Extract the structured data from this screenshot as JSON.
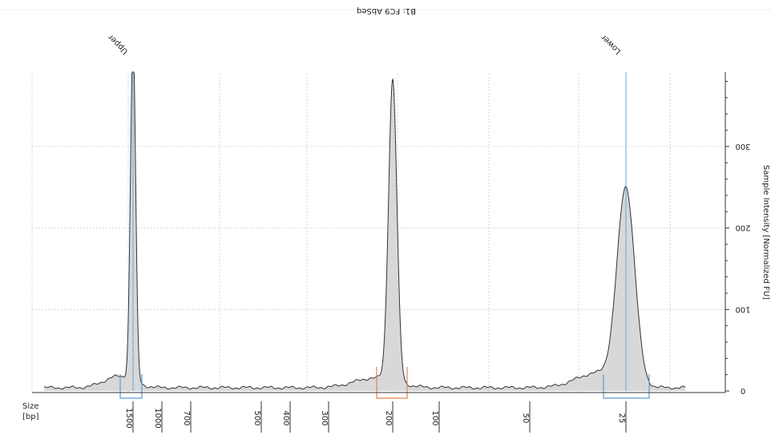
{
  "chart_data": {
    "type": "line",
    "title": "B1: FC9 AbSeq",
    "ylabel": "Sample Intensity [Normalized FU]",
    "xlabel_lines": [
      "Size",
      "[bp]"
    ],
    "y_ticks": [
      0,
      100,
      200,
      300
    ],
    "ylim": [
      0,
      390
    ],
    "x_ticks": [
      "1500",
      "1000",
      "700",
      "500",
      "400",
      "300",
      "200",
      "100",
      "50",
      "25"
    ],
    "grid": true,
    "mirrored": true,
    "peaks": [
      {
        "label": "Upper",
        "size_bp": 1500,
        "intensity": 420
      },
      {
        "size_bp": 200,
        "intensity": 370
      },
      {
        "label": "Lower",
        "size_bp": 25,
        "intensity": 240
      }
    ],
    "regions": [
      {
        "size_bp": 1500,
        "color": "#5b9bd5"
      },
      {
        "size_bp": 200,
        "color": "#e8834b"
      },
      {
        "size_bp": 25,
        "color": "#5b9bd5"
      }
    ],
    "colors": {
      "trace": "#333333",
      "fill": "#d8d8d8",
      "marker_line": "#6aa6d6",
      "region_blue": "#5b9bd5",
      "region_orange": "#e8834b",
      "grid": "#bdbdbd"
    }
  }
}
